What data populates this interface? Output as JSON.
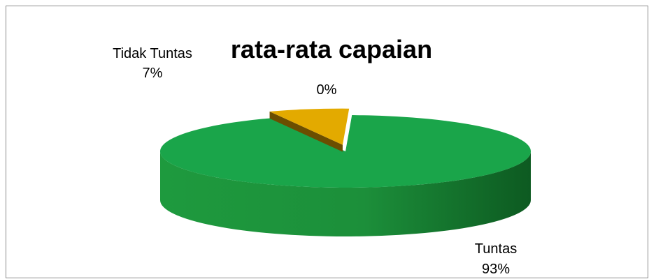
{
  "chart_data": {
    "type": "pie",
    "title": "rata-rata capaian",
    "categories": [
      "Tuntas",
      "Tidak Tuntas",
      ""
    ],
    "values": [
      93,
      7,
      0
    ],
    "percent_labels": [
      "93%",
      "7%",
      "0%"
    ],
    "colors": {
      "Tuntas": "#1aa54a",
      "Tidak Tuntas": "#e3aa00",
      "third": "#c0c0c0"
    },
    "style": "3d",
    "legend": "none"
  }
}
